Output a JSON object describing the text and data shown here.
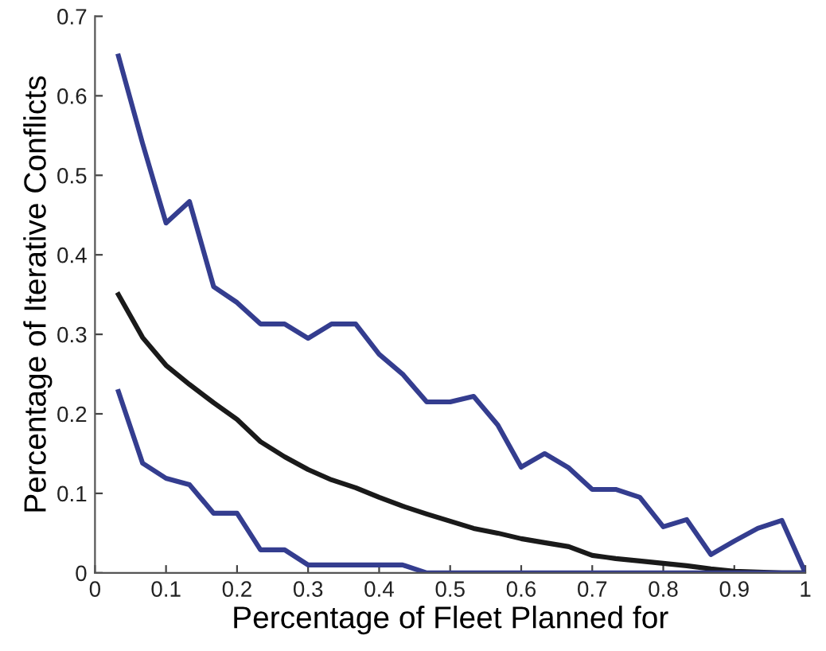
{
  "chart_data": {
    "type": "line",
    "xlabel": "Percentage of Fleet Planned for",
    "ylabel": "Percentage of Iterative Conflicts",
    "x": [
      0.033,
      0.067,
      0.1,
      0.133,
      0.167,
      0.2,
      0.233,
      0.267,
      0.3,
      0.333,
      0.367,
      0.4,
      0.433,
      0.467,
      0.5,
      0.533,
      0.567,
      0.6,
      0.633,
      0.667,
      0.7,
      0.733,
      0.767,
      0.8,
      0.833,
      0.867,
      0.9,
      0.933,
      0.967,
      1.0
    ],
    "series": [
      {
        "color": "#343d8f",
        "values": [
          0.65,
          0.54,
          0.44,
          0.467,
          0.36,
          0.34,
          0.313,
          0.313,
          0.295,
          0.313,
          0.313,
          0.275,
          0.25,
          0.215,
          0.215,
          0.222,
          0.186,
          0.133,
          0.15,
          0.132,
          0.105,
          0.105,
          0.095,
          0.058,
          0.067,
          0.023,
          0.04,
          0.056,
          0.066,
          0.0
        ]
      },
      {
        "color": "#1a1a1a",
        "values": [
          0.35,
          0.296,
          0.261,
          0.237,
          0.214,
          0.193,
          0.165,
          0.146,
          0.13,
          0.117,
          0.107,
          0.095,
          0.084,
          0.074,
          0.065,
          0.056,
          0.05,
          0.043,
          0.038,
          0.033,
          0.022,
          0.018,
          0.015,
          0.012,
          0.009,
          0.005,
          0.002,
          0.001,
          0.0,
          0.0
        ]
      },
      {
        "color": "#343d8f",
        "values": [
          0.228,
          0.138,
          0.119,
          0.111,
          0.075,
          0.075,
          0.029,
          0.029,
          0.01,
          0.01,
          0.01,
          0.01,
          0.01,
          0.0,
          0.0,
          0.0,
          0.0,
          0.0,
          0.0,
          0.0,
          0.0,
          0.0,
          0.0,
          0.0,
          0.0,
          0.0,
          0.0,
          0.0,
          0.0,
          0.0
        ]
      }
    ],
    "xlim": [
      0,
      1
    ],
    "xticks": [
      0,
      0.1,
      0.2,
      0.3,
      0.4,
      0.5,
      0.6,
      0.7,
      0.8,
      0.9,
      1
    ],
    "ylim": [
      0,
      0.7
    ],
    "yticks": [
      0,
      0.1,
      0.2,
      0.3,
      0.4,
      0.5,
      0.6,
      0.7
    ],
    "grid": false,
    "marker": "none",
    "line_style": "solid"
  }
}
